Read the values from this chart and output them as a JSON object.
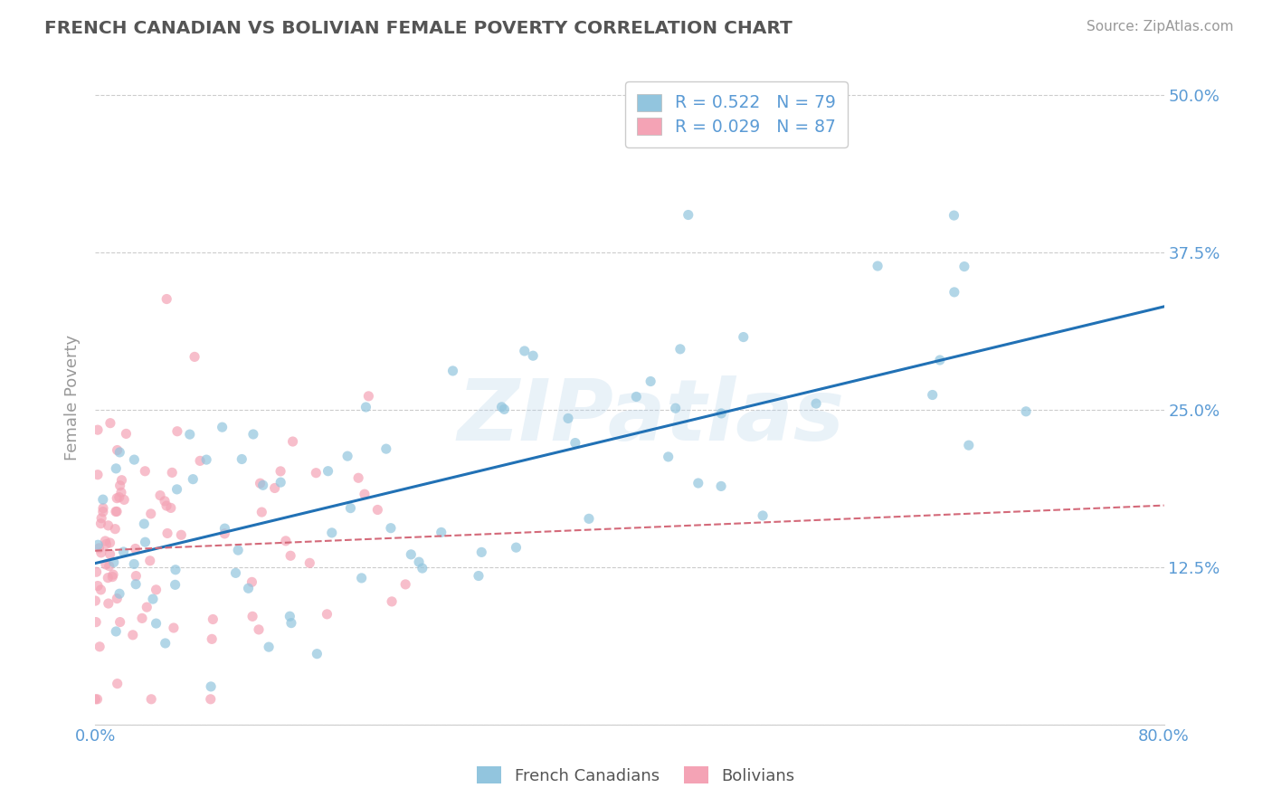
{
  "title": "FRENCH CANADIAN VS BOLIVIAN FEMALE POVERTY CORRELATION CHART",
  "source": "Source: ZipAtlas.com",
  "ylabel": "Female Poverty",
  "xlim": [
    0.0,
    0.8
  ],
  "ylim": [
    0.0,
    0.52
  ],
  "xticks": [
    0.0,
    0.1,
    0.2,
    0.3,
    0.4,
    0.5,
    0.6,
    0.7,
    0.8
  ],
  "xtick_labels": [
    "0.0%",
    "",
    "",
    "",
    "",
    "",
    "",
    "",
    "80.0%"
  ],
  "yticks": [
    0.0,
    0.125,
    0.25,
    0.375,
    0.5
  ],
  "ytick_labels_right": [
    "",
    "12.5%",
    "25.0%",
    "37.5%",
    "50.0%"
  ],
  "blue_color": "#92c5de",
  "pink_color": "#f4a3b5",
  "blue_line_color": "#2171b5",
  "pink_line_color": "#d46a7a",
  "R_blue": 0.522,
  "N_blue": 79,
  "R_pink": 0.029,
  "N_pink": 87,
  "legend_label_blue": "French Canadians",
  "legend_label_pink": "Bolivians",
  "watermark": "ZIPatlas",
  "background_color": "#ffffff",
  "title_color": "#555555",
  "tick_color": "#5b9bd5",
  "grid_color": "#cccccc",
  "blue_seed": 42,
  "pink_seed": 99
}
